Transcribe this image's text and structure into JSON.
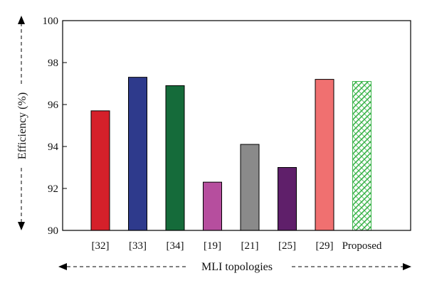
{
  "chart_data": {
    "type": "bar",
    "categories": [
      "[32]",
      "[33]",
      "[34]",
      "[19]",
      "[21]",
      "[25]",
      "[29]",
      "Proposed"
    ],
    "values": [
      95.7,
      97.3,
      96.9,
      92.3,
      94.1,
      93.0,
      97.2,
      97.1
    ],
    "colors": [
      "#d5202a",
      "#2e3a8c",
      "#156b3a",
      "#b64e9e",
      "#8a8a8a",
      "#5f1f6a",
      "#f07070",
      "#3cb44b"
    ],
    "patterns": [
      "solid",
      "solid",
      "solid",
      "solid",
      "solid",
      "solid",
      "solid",
      "hatched"
    ],
    "title": "",
    "xlabel": "MLI topologies",
    "ylabel": "Efficiency (%)",
    "ylim": [
      90,
      100
    ],
    "yticks": [
      90,
      92,
      94,
      96,
      98,
      100
    ],
    "grid": false,
    "legend": "none"
  }
}
